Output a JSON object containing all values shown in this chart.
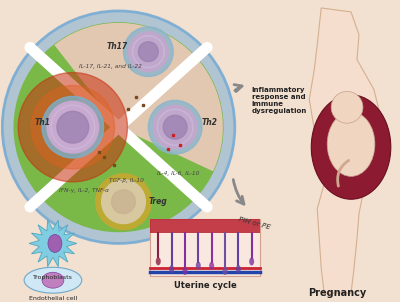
{
  "bg_color": "#f2e0d0",
  "cell_outer_color": "#7badd4",
  "cell_green_color": "#7ab848",
  "cell_pink_color": "#e8c8b8",
  "th1_cytokines": "IFN-γ, IL-2, TNF-α",
  "th2_cytokines": "IL-4, IL-6, IL-10",
  "th17_cytokines": "IL-17, IL-21, and IL-22",
  "treg_cytokines": "TGF-β, IL-10",
  "arrow1_label": "Inflammatory\nresponse and\nimmune\ndysregulation",
  "arrow2_label": "PIH or PE",
  "uterine_label": "Uterine cycle",
  "pregnancy_label": "Pregnancy",
  "trophoblast_label": "Trophoblasts",
  "endothelial_label": "Endothelial cell",
  "arrow_color": "#888888",
  "dot_brown": "#7a4a20",
  "dot_red": "#cc2222",
  "cell_purple": "#c0a8cc",
  "cell_blue_ring": "#8ab5cc",
  "cell_gold_ring": "#c8a830",
  "th1_glow1": "#c83010",
  "th1_glow2": "#e06020",
  "body_fill": "#f5dece",
  "body_edge": "#d4b090",
  "uterus_fill": "#8c1a30",
  "uterus_edge": "#6a0f20",
  "baby_fill": "#f0d5c0",
  "trophoblast_fill": "#80cce0",
  "trophoblast_nuc": "#a060b0",
  "endo_fill": "#d0e8f5",
  "endo_nuc": "#c080c0"
}
